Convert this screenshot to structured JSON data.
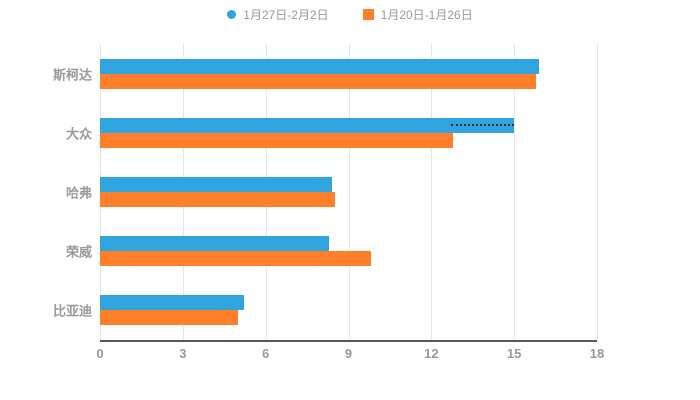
{
  "styles": {
    "background": "#ffffff",
    "grid_color": "#e6e6e6",
    "axis_color": "#595959",
    "text_color": "#999999"
  },
  "legend": {
    "items": [
      {
        "label": "1月27日-2月2日",
        "marker": "circle",
        "color": "#2FA4DE"
      },
      {
        "label": "1月20日-1月26日",
        "marker": "square",
        "color": "#FF7F2A"
      }
    ]
  },
  "chart_data": {
    "type": "bar",
    "orientation": "horizontal",
    "title": "",
    "categories": [
      "斯柯达",
      "大众",
      "哈弗",
      "荣威",
      "比亚迪"
    ],
    "series": [
      {
        "name": "1月27日-2月2日",
        "color": "#2FA4DE",
        "values": [
          15.9,
          15.0,
          8.4,
          8.3,
          5.2
        ]
      },
      {
        "name": "1月20日-1月26日",
        "color": "#FF7F2A",
        "values": [
          15.8,
          12.8,
          8.5,
          9.8,
          5.0
        ]
      }
    ],
    "xlim": [
      0,
      18
    ],
    "xticks": [
      0,
      3,
      6,
      9,
      12,
      15,
      18
    ],
    "grid": true,
    "legend_position": "top",
    "annotation": {
      "note": "dotted tail overlay on blue bar of 大众",
      "category_index": 1,
      "series_index": 0,
      "from": 12.7,
      "to": 15.0
    }
  }
}
